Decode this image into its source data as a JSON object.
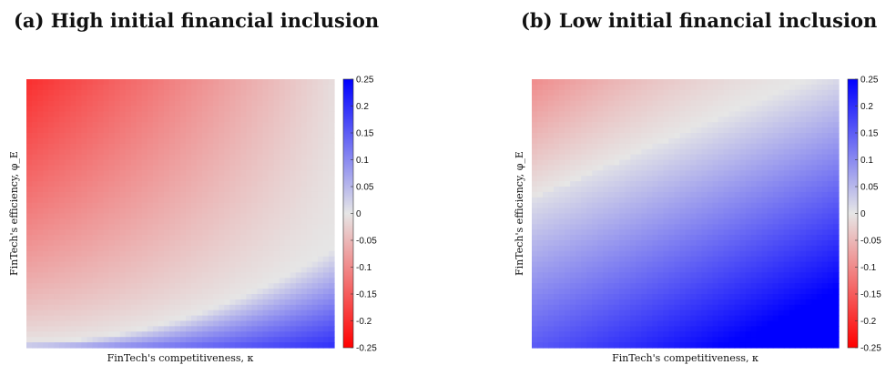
{
  "chart_data": [
    {
      "type": "heatmap",
      "title": "(a) High initial financial inclusion",
      "xlabel": "FinTech's competitiveness, κ",
      "ylabel": "FinTech's efficiency, φ_E",
      "x_ticks": [],
      "y_ticks": [],
      "colorbar": {
        "min": -0.25,
        "max": 0.25,
        "ticks": [
          "0.25",
          "0.2",
          "0.15",
          "0.1",
          "0.05",
          "0",
          "-0.05",
          "-0.1",
          "-0.15",
          "-0.2",
          "-0.25"
        ],
        "low_color": "#ff0000",
        "mid_color": "#e6e6e6",
        "high_color": "#0000ff"
      },
      "grid": false,
      "description_values": {
        "top_left": -0.19,
        "top_right": -0.01,
        "bottom_left": -0.02,
        "bottom_right": 0.18
      }
    },
    {
      "type": "heatmap",
      "title": "(b) Low initial financial inclusion",
      "xlabel": "FinTech's competitiveness, κ",
      "ylabel": "FinTech's efficiency, φ_E",
      "x_ticks": [],
      "y_ticks": [],
      "colorbar": {
        "min": -0.25,
        "max": 0.25,
        "ticks": [
          "0.25",
          "0.2",
          "0.15",
          "0.1",
          "0.05",
          "0",
          "-0.05",
          "-0.1",
          "-0.15",
          "-0.2",
          "-0.25"
        ],
        "low_color": "#ff0000",
        "mid_color": "#e6e6e6",
        "high_color": "#0000ff"
      },
      "grid": false,
      "description_values": {
        "top_left": -0.09,
        "top_right": 0.06,
        "bottom_left": 0.19,
        "bottom_right": 0.24
      }
    }
  ]
}
